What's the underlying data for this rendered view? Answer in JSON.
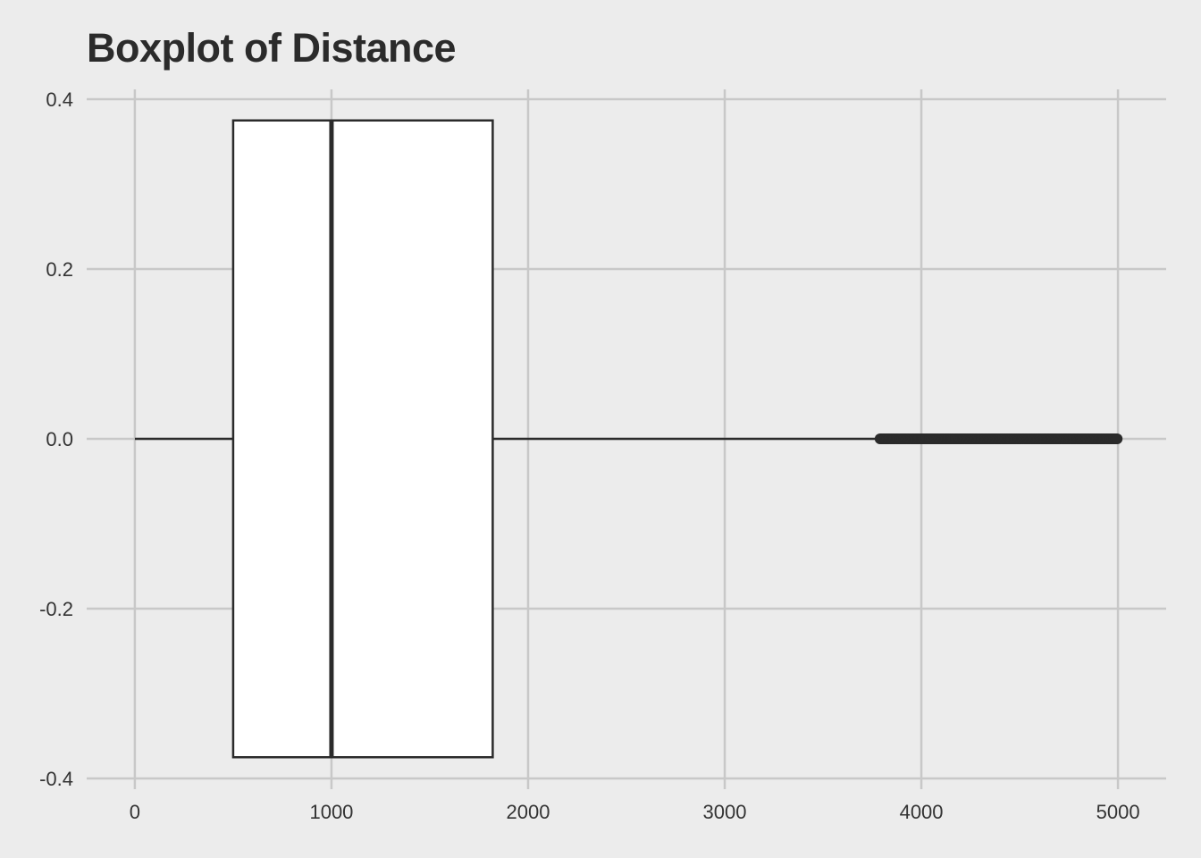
{
  "chart_data": {
    "type": "boxplot",
    "title": "Boxplot of Distance",
    "xlabel": "",
    "ylabel": "",
    "orientation": "horizontal",
    "xlim": [
      -245,
      5245
    ],
    "ylim": [
      -0.4,
      0.4
    ],
    "x_ticks": [
      0,
      1000,
      2000,
      3000,
      4000,
      5000
    ],
    "x_tick_labels": [
      "0",
      "1000",
      "2000",
      "3000",
      "4000",
      "5000"
    ],
    "y_ticks": [
      0.4,
      0.2,
      0.0,
      -0.2,
      -0.4
    ],
    "y_tick_labels": [
      "0.4",
      "0.2",
      "0.0",
      "-0.2",
      "-0.4"
    ],
    "grid": true,
    "box": {
      "whisker_low": 0,
      "q1": 500,
      "median": 1000,
      "q3": 1820,
      "whisker_high": 3780,
      "box_half_height": 0.375,
      "center": 0.0,
      "fill": "#ffffff",
      "stroke": "#2b2b2b"
    },
    "outliers": {
      "range": [
        3790,
        5000
      ],
      "color": "#2b2b2b"
    },
    "background": "#ececec",
    "grid_color": "#c8c8c8"
  }
}
